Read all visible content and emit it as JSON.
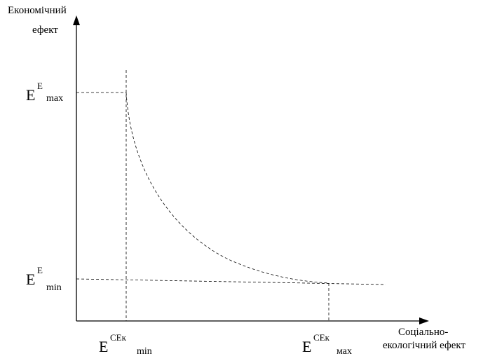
{
  "axes": {
    "y_label_line1": "Економічний",
    "y_label_line2": "ефект",
    "x_label_line1": "Соціально-",
    "x_label_line2": "екологічний ефект"
  },
  "markers": {
    "e_max": {
      "base": "E",
      "sup": "E",
      "sub": "max"
    },
    "e_min": {
      "base": "E",
      "sup": "E",
      "sub": "min"
    },
    "ce_min": {
      "base": "E",
      "sup": "CEк",
      "sub": "min"
    },
    "ce_max": {
      "base": "E",
      "sup": "CEк",
      "sub": "мах"
    }
  }
}
